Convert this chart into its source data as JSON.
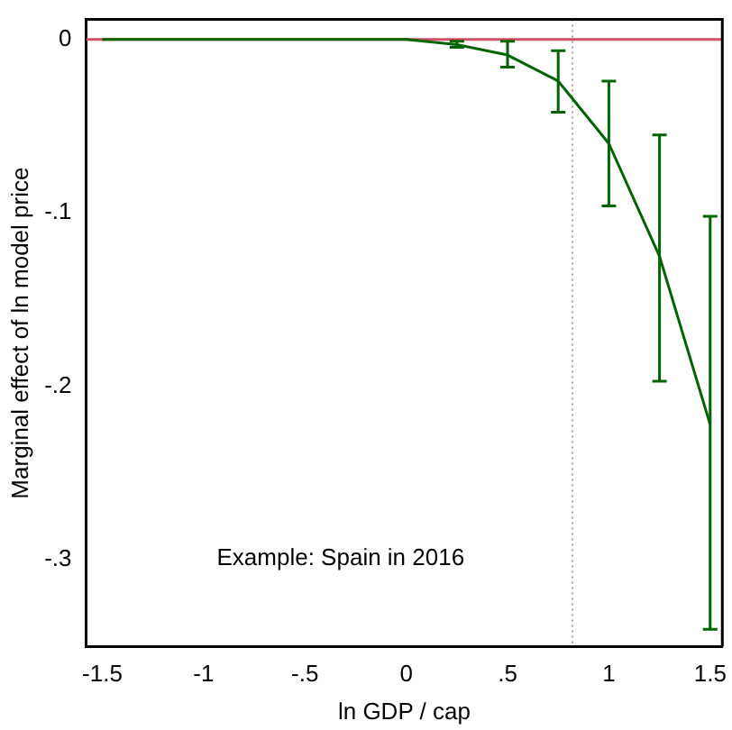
{
  "chart_data": {
    "type": "line",
    "xlabel": "ln GDP / cap",
    "ylabel": "Marginal effect of ln model price",
    "x": [
      -1.5,
      -1.25,
      -1,
      -0.75,
      -0.5,
      -0.25,
      0,
      0.25,
      0.5,
      0.75,
      1,
      1.25,
      1.5
    ],
    "series": [
      {
        "color": "#006400",
        "values": [
          0,
          0,
          0,
          0,
          0,
          0,
          0,
          -0.003,
          -0.009,
          -0.024,
          -0.06,
          -0.125,
          -0.222
        ],
        "errors": [
          null,
          null,
          null,
          null,
          null,
          null,
          null,
          [
            -0.0045,
            -0.001
          ],
          [
            -0.016,
            -0.001
          ],
          [
            -0.042,
            -0.0065
          ],
          [
            -0.096,
            -0.024
          ],
          [
            -0.197,
            -0.055
          ],
          [
            -0.34,
            -0.102
          ]
        ]
      }
    ],
    "xlim": [
      -1.58,
      1.56
    ],
    "ylim": [
      -0.35,
      0.0115
    ],
    "xticks": [
      {
        "value": -1.5,
        "label": "-1.5"
      },
      {
        "value": -1,
        "label": "-1"
      },
      {
        "value": -0.5,
        "label": "-.5"
      },
      0,
      {
        "value": 0.5,
        "label": ".5"
      },
      1,
      {
        "value": 1.5,
        "label": "1.5"
      }
    ],
    "yticks": [
      0,
      {
        "value": -0.1,
        "label": "-.1"
      },
      {
        "value": -0.2,
        "label": "-.2"
      },
      {
        "value": -0.3,
        "label": "-.3"
      }
    ],
    "ref_lines": [
      {
        "axis": "y",
        "value": 0,
        "color": "#d0506a",
        "line_style": "solid"
      },
      {
        "axis": "x",
        "value": 0.82,
        "color": "#a0a0a0",
        "line_style": "dotted"
      }
    ],
    "annotations": [
      "Example: Spain in 2016"
    ],
    "grid": false,
    "legend": false,
    "marker": "none",
    "line_style": "solid"
  }
}
